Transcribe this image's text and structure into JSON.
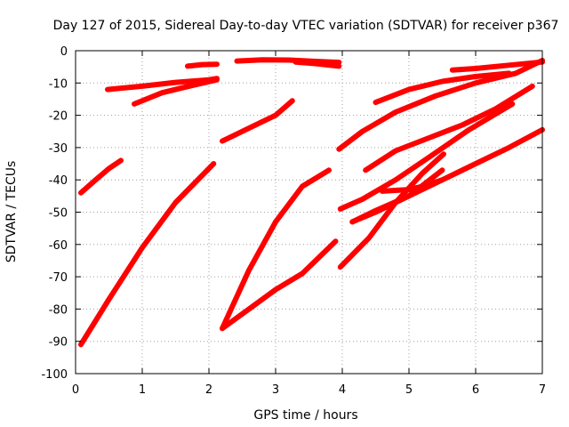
{
  "chart_data": {
    "type": "line",
    "title": "Day 127 of 2015, Sidereal Day-to-day VTEC variation (SDTVAR) for receiver p367",
    "xlabel": "GPS time / hours",
    "ylabel": "SDTVAR / TECUs",
    "xlim": [
      0,
      7
    ],
    "ylim": [
      -100,
      0
    ],
    "xticks": [
      0,
      1,
      2,
      3,
      4,
      5,
      6,
      7
    ],
    "yticks": [
      0,
      -10,
      -20,
      -30,
      -40,
      -50,
      -60,
      -70,
      -80,
      -90,
      -100
    ],
    "grid": true,
    "legend": "none",
    "color": "#ff0000",
    "series": [
      {
        "x": [
          0.08,
          0.3,
          0.5,
          0.68
        ],
        "y": [
          -44,
          -40,
          -36.5,
          -34
        ]
      },
      {
        "x": [
          0.08,
          0.5,
          1.0,
          1.5,
          2.07
        ],
        "y": [
          -91,
          -77,
          -61,
          -47,
          -35
        ]
      },
      {
        "x": [
          0.48,
          1.0,
          1.5,
          2.0,
          2.12
        ],
        "y": [
          -12,
          -11,
          -9.8,
          -9,
          -8.6
        ]
      },
      {
        "x": [
          0.88,
          1.3,
          1.7,
          2.12
        ],
        "y": [
          -16.5,
          -13,
          -11,
          -9
        ]
      },
      {
        "x": [
          1.68,
          1.9,
          2.12
        ],
        "y": [
          -4.8,
          -4.3,
          -4.2
        ]
      },
      {
        "x": [
          2.2,
          2.6,
          3.0,
          3.25
        ],
        "y": [
          -28,
          -24,
          -20,
          -15.5
        ]
      },
      {
        "x": [
          2.42,
          2.8,
          3.2,
          3.6,
          3.95
        ],
        "y": [
          -3.2,
          -2.8,
          -2.9,
          -3.3,
          -3.6
        ]
      },
      {
        "x": [
          3.3,
          3.6,
          3.95
        ],
        "y": [
          -3.5,
          -4,
          -4.8
        ]
      },
      {
        "x": [
          2.2,
          2.6,
          3.0,
          3.4,
          3.8
        ],
        "y": [
          -86,
          -68,
          -53,
          -42,
          -37
        ]
      },
      {
        "x": [
          2.2,
          2.6,
          3.0,
          3.4,
          3.9
        ],
        "y": [
          -86,
          -80,
          -74,
          -69,
          -59
        ]
      },
      {
        "x": [
          3.95,
          4.3,
          4.8,
          5.4,
          6.0,
          6.6,
          7.0
        ],
        "y": [
          -30.5,
          -25,
          -19,
          -14,
          -10,
          -7,
          -3
        ]
      },
      {
        "x": [
          5.65,
          6.0,
          6.5,
          7.0
        ],
        "y": [
          -6,
          -5.5,
          -4.5,
          -3.5
        ]
      },
      {
        "x": [
          4.5,
          5.0,
          5.5,
          6.0,
          6.5
        ],
        "y": [
          -16,
          -12,
          -9.5,
          -8,
          -7
        ]
      },
      {
        "x": [
          4.35,
          4.8,
          5.3,
          5.8,
          6.3,
          6.85
        ],
        "y": [
          -37,
          -31,
          -27,
          -23,
          -18,
          -11
        ]
      },
      {
        "x": [
          3.97,
          4.3,
          4.8,
          5.3,
          5.9,
          6.55
        ],
        "y": [
          -49,
          -46,
          -40,
          -33,
          -24.5,
          -16.5
        ]
      },
      {
        "x": [
          4.15,
          4.5,
          5.0,
          5.5,
          6.0,
          6.5,
          7.0
        ],
        "y": [
          -53,
          -49.5,
          -45,
          -40,
          -35,
          -30,
          -24.5
        ]
      },
      {
        "x": [
          3.97,
          4.4,
          4.8,
          5.2,
          5.52
        ],
        "y": [
          -67,
          -58,
          -47,
          -38,
          -32
        ]
      },
      {
        "x": [
          4.15,
          4.5,
          5.0,
          5.5
        ],
        "y": [
          -53,
          -50,
          -45,
          -37
        ]
      },
      {
        "x": [
          4.6,
          5.0,
          5.2,
          5.5
        ],
        "y": [
          -43.5,
          -43,
          -42,
          -40
        ]
      }
    ]
  }
}
